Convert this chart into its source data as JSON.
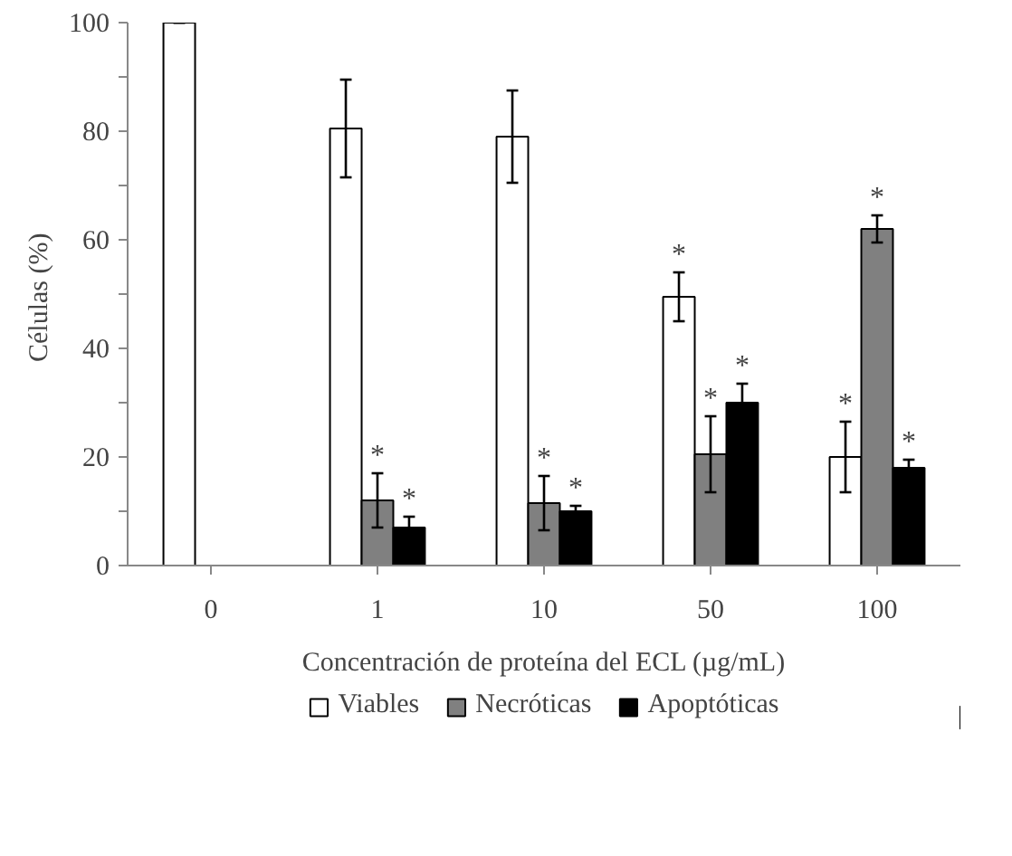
{
  "chart_data": {
    "type": "bar",
    "xlabel": "Concentración de proteína del ECL (µg/mL)",
    "ylabel": "Células  (%)",
    "categories": [
      "0",
      "1",
      "10",
      "50",
      "100"
    ],
    "series": [
      {
        "name": "Viables",
        "color": "#ffffff",
        "values": [
          100,
          80.5,
          79,
          49.5,
          20
        ],
        "errors": [
          0,
          9,
          8.5,
          4.5,
          6.5
        ],
        "value_labels": [
          null,
          null,
          null,
          "*",
          "*"
        ]
      },
      {
        "name": "Necróticas",
        "color": "#808080",
        "values": [
          null,
          12,
          11.5,
          20.5,
          62
        ],
        "errors": [
          null,
          5,
          5,
          7,
          2.5
        ],
        "value_labels": [
          null,
          "*",
          "*",
          "*",
          "*"
        ]
      },
      {
        "name": "Apoptóticas",
        "color": "#000000",
        "values": [
          null,
          7,
          10,
          30,
          18
        ],
        "errors": [
          null,
          2,
          1,
          3.5,
          1.5
        ],
        "value_labels": [
          null,
          "*",
          "*",
          "*",
          "*"
        ]
      }
    ],
    "ylim": [
      0,
      100
    ],
    "yticks": [
      0,
      {
        "value": 10,
        "label": null
      },
      20,
      {
        "value": 30,
        "label": null
      },
      40,
      {
        "value": 50,
        "label": null
      },
      60,
      {
        "value": 70,
        "label": null
      },
      80,
      {
        "value": 90,
        "label": null
      },
      100
    ],
    "grid": false,
    "legend": "bottom"
  }
}
